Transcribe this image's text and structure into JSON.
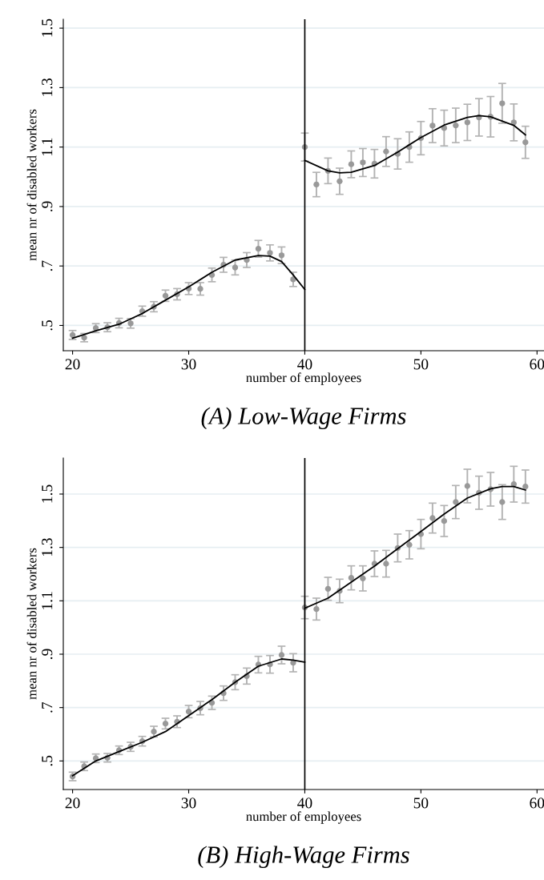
{
  "chart_data": [
    {
      "type": "scatter",
      "title": "(A) Low-Wage Firms",
      "xlabel": "number of employees",
      "ylabel": "mean nr of disabled workers",
      "xlim": [
        19.2,
        60.6
      ],
      "xticks": [
        20,
        30,
        40,
        50,
        60
      ],
      "ylim": [
        0.415,
        1.53
      ],
      "yticks": [
        {
          "value": 0.5,
          "label": ".5"
        },
        {
          "value": 0.7,
          "label": ".7"
        },
        {
          "value": 0.9,
          "label": ".9"
        },
        {
          "value": 1.1,
          "label": "1.1"
        },
        {
          "value": 1.3,
          "label": "1.3"
        },
        {
          "value": 1.5,
          "label": "1.5"
        }
      ],
      "grid": "y",
      "ref_lines": [
        {
          "axis": "x",
          "value": 40,
          "color": "#000000"
        }
      ],
      "series": [
        {
          "marker": "circle",
          "color": "#999999",
          "x": [
            20,
            21,
            22,
            23,
            24,
            25,
            26,
            27,
            28,
            29,
            30,
            31,
            32,
            33,
            34,
            35,
            36,
            37,
            38,
            39,
            40,
            41,
            42,
            43,
            44,
            45,
            46,
            47,
            48,
            49,
            50,
            51,
            52,
            53,
            54,
            55,
            56,
            57,
            58,
            59
          ],
          "values": [
            0.468,
            0.459,
            0.491,
            0.494,
            0.508,
            0.507,
            0.548,
            0.563,
            0.6,
            0.605,
            0.624,
            0.623,
            0.67,
            0.704,
            0.695,
            0.72,
            0.758,
            0.744,
            0.736,
            0.655,
            1.1,
            0.974,
            1.02,
            0.985,
            1.042,
            1.048,
            1.044,
            1.085,
            1.077,
            1.1,
            1.13,
            1.172,
            1.164,
            1.173,
            1.183,
            1.2,
            1.202,
            1.247,
            1.183,
            1.116
          ],
          "errors": [
            0.015,
            0.014,
            0.015,
            0.015,
            0.016,
            0.016,
            0.017,
            0.017,
            0.019,
            0.019,
            0.02,
            0.021,
            0.023,
            0.025,
            0.025,
            0.025,
            0.028,
            0.027,
            0.028,
            0.024,
            0.047,
            0.041,
            0.043,
            0.044,
            0.045,
            0.047,
            0.048,
            0.05,
            0.051,
            0.051,
            0.056,
            0.057,
            0.06,
            0.058,
            0.061,
            0.063,
            0.068,
            0.067,
            0.062,
            0.054
          ]
        },
        {
          "type": "line",
          "color": "#000000",
          "x": [
            20,
            22,
            24,
            25,
            26,
            28,
            30,
            32,
            34,
            36,
            37,
            38,
            39,
            40
          ],
          "values": [
            0.457,
            0.482,
            0.504,
            0.522,
            0.54,
            0.585,
            0.63,
            0.679,
            0.72,
            0.735,
            0.733,
            0.715,
            0.67,
            0.621
          ]
        },
        {
          "type": "line",
          "color": "#000000",
          "x": [
            40,
            42,
            43,
            44,
            46,
            48,
            50,
            52,
            54,
            55,
            56,
            58,
            59
          ],
          "values": [
            1.055,
            1.02,
            1.013,
            1.015,
            1.038,
            1.083,
            1.132,
            1.174,
            1.2,
            1.206,
            1.202,
            1.173,
            1.141
          ]
        }
      ]
    },
    {
      "type": "scatter",
      "title": "(B) High-Wage Firms",
      "xlabel": "number of employees",
      "ylabel": "mean nr of disabled workers",
      "xlim": [
        19.2,
        60.6
      ],
      "xticks": [
        20,
        30,
        40,
        50,
        60
      ],
      "ylim": [
        0.393,
        1.635
      ],
      "yticks": [
        {
          "value": 0.5,
          "label": ".5"
        },
        {
          "value": 0.7,
          "label": ".7"
        },
        {
          "value": 0.9,
          "label": ".9"
        },
        {
          "value": 1.1,
          "label": "1.1"
        },
        {
          "value": 1.3,
          "label": "1.3"
        },
        {
          "value": 1.5,
          "label": "1.5"
        }
      ],
      "grid": "y",
      "ref_lines": [
        {
          "axis": "x",
          "value": 40,
          "color": "#000000"
        }
      ],
      "series": [
        {
          "marker": "circle",
          "color": "#999999",
          "x": [
            20,
            21,
            22,
            23,
            24,
            25,
            26,
            27,
            28,
            29,
            30,
            31,
            32,
            33,
            34,
            35,
            36,
            37,
            38,
            39,
            40,
            41,
            42,
            43,
            44,
            45,
            46,
            47,
            48,
            49,
            50,
            51,
            52,
            53,
            54,
            55,
            56,
            57,
            58,
            59
          ],
          "values": [
            0.442,
            0.48,
            0.51,
            0.512,
            0.54,
            0.553,
            0.574,
            0.61,
            0.64,
            0.647,
            0.685,
            0.698,
            0.718,
            0.754,
            0.795,
            0.818,
            0.861,
            0.862,
            0.897,
            0.868,
            1.075,
            1.069,
            1.145,
            1.137,
            1.186,
            1.184,
            1.239,
            1.239,
            1.298,
            1.31,
            1.35,
            1.41,
            1.399,
            1.47,
            1.53,
            1.505,
            1.518,
            1.47,
            1.537,
            1.528
          ],
          "errors": [
            0.016,
            0.016,
            0.016,
            0.016,
            0.016,
            0.017,
            0.018,
            0.02,
            0.02,
            0.022,
            0.023,
            0.025,
            0.025,
            0.027,
            0.028,
            0.03,
            0.031,
            0.033,
            0.033,
            0.034,
            0.042,
            0.041,
            0.043,
            0.044,
            0.045,
            0.047,
            0.048,
            0.05,
            0.052,
            0.053,
            0.055,
            0.056,
            0.058,
            0.062,
            0.063,
            0.062,
            0.063,
            0.065,
            0.067,
            0.062
          ]
        },
        {
          "type": "line",
          "color": "#000000",
          "x": [
            20,
            22,
            24,
            26,
            28,
            30,
            32,
            34,
            36,
            38,
            39,
            40
          ],
          "values": [
            0.445,
            0.5,
            0.535,
            0.57,
            0.61,
            0.67,
            0.73,
            0.795,
            0.855,
            0.882,
            0.878,
            0.87
          ]
        },
        {
          "type": "line",
          "color": "#000000",
          "x": [
            40,
            42,
            44,
            46,
            48,
            50,
            52,
            54,
            56,
            57,
            58,
            59
          ],
          "values": [
            1.072,
            1.11,
            1.17,
            1.23,
            1.295,
            1.36,
            1.425,
            1.485,
            1.52,
            1.528,
            1.528,
            1.515
          ]
        }
      ]
    }
  ]
}
